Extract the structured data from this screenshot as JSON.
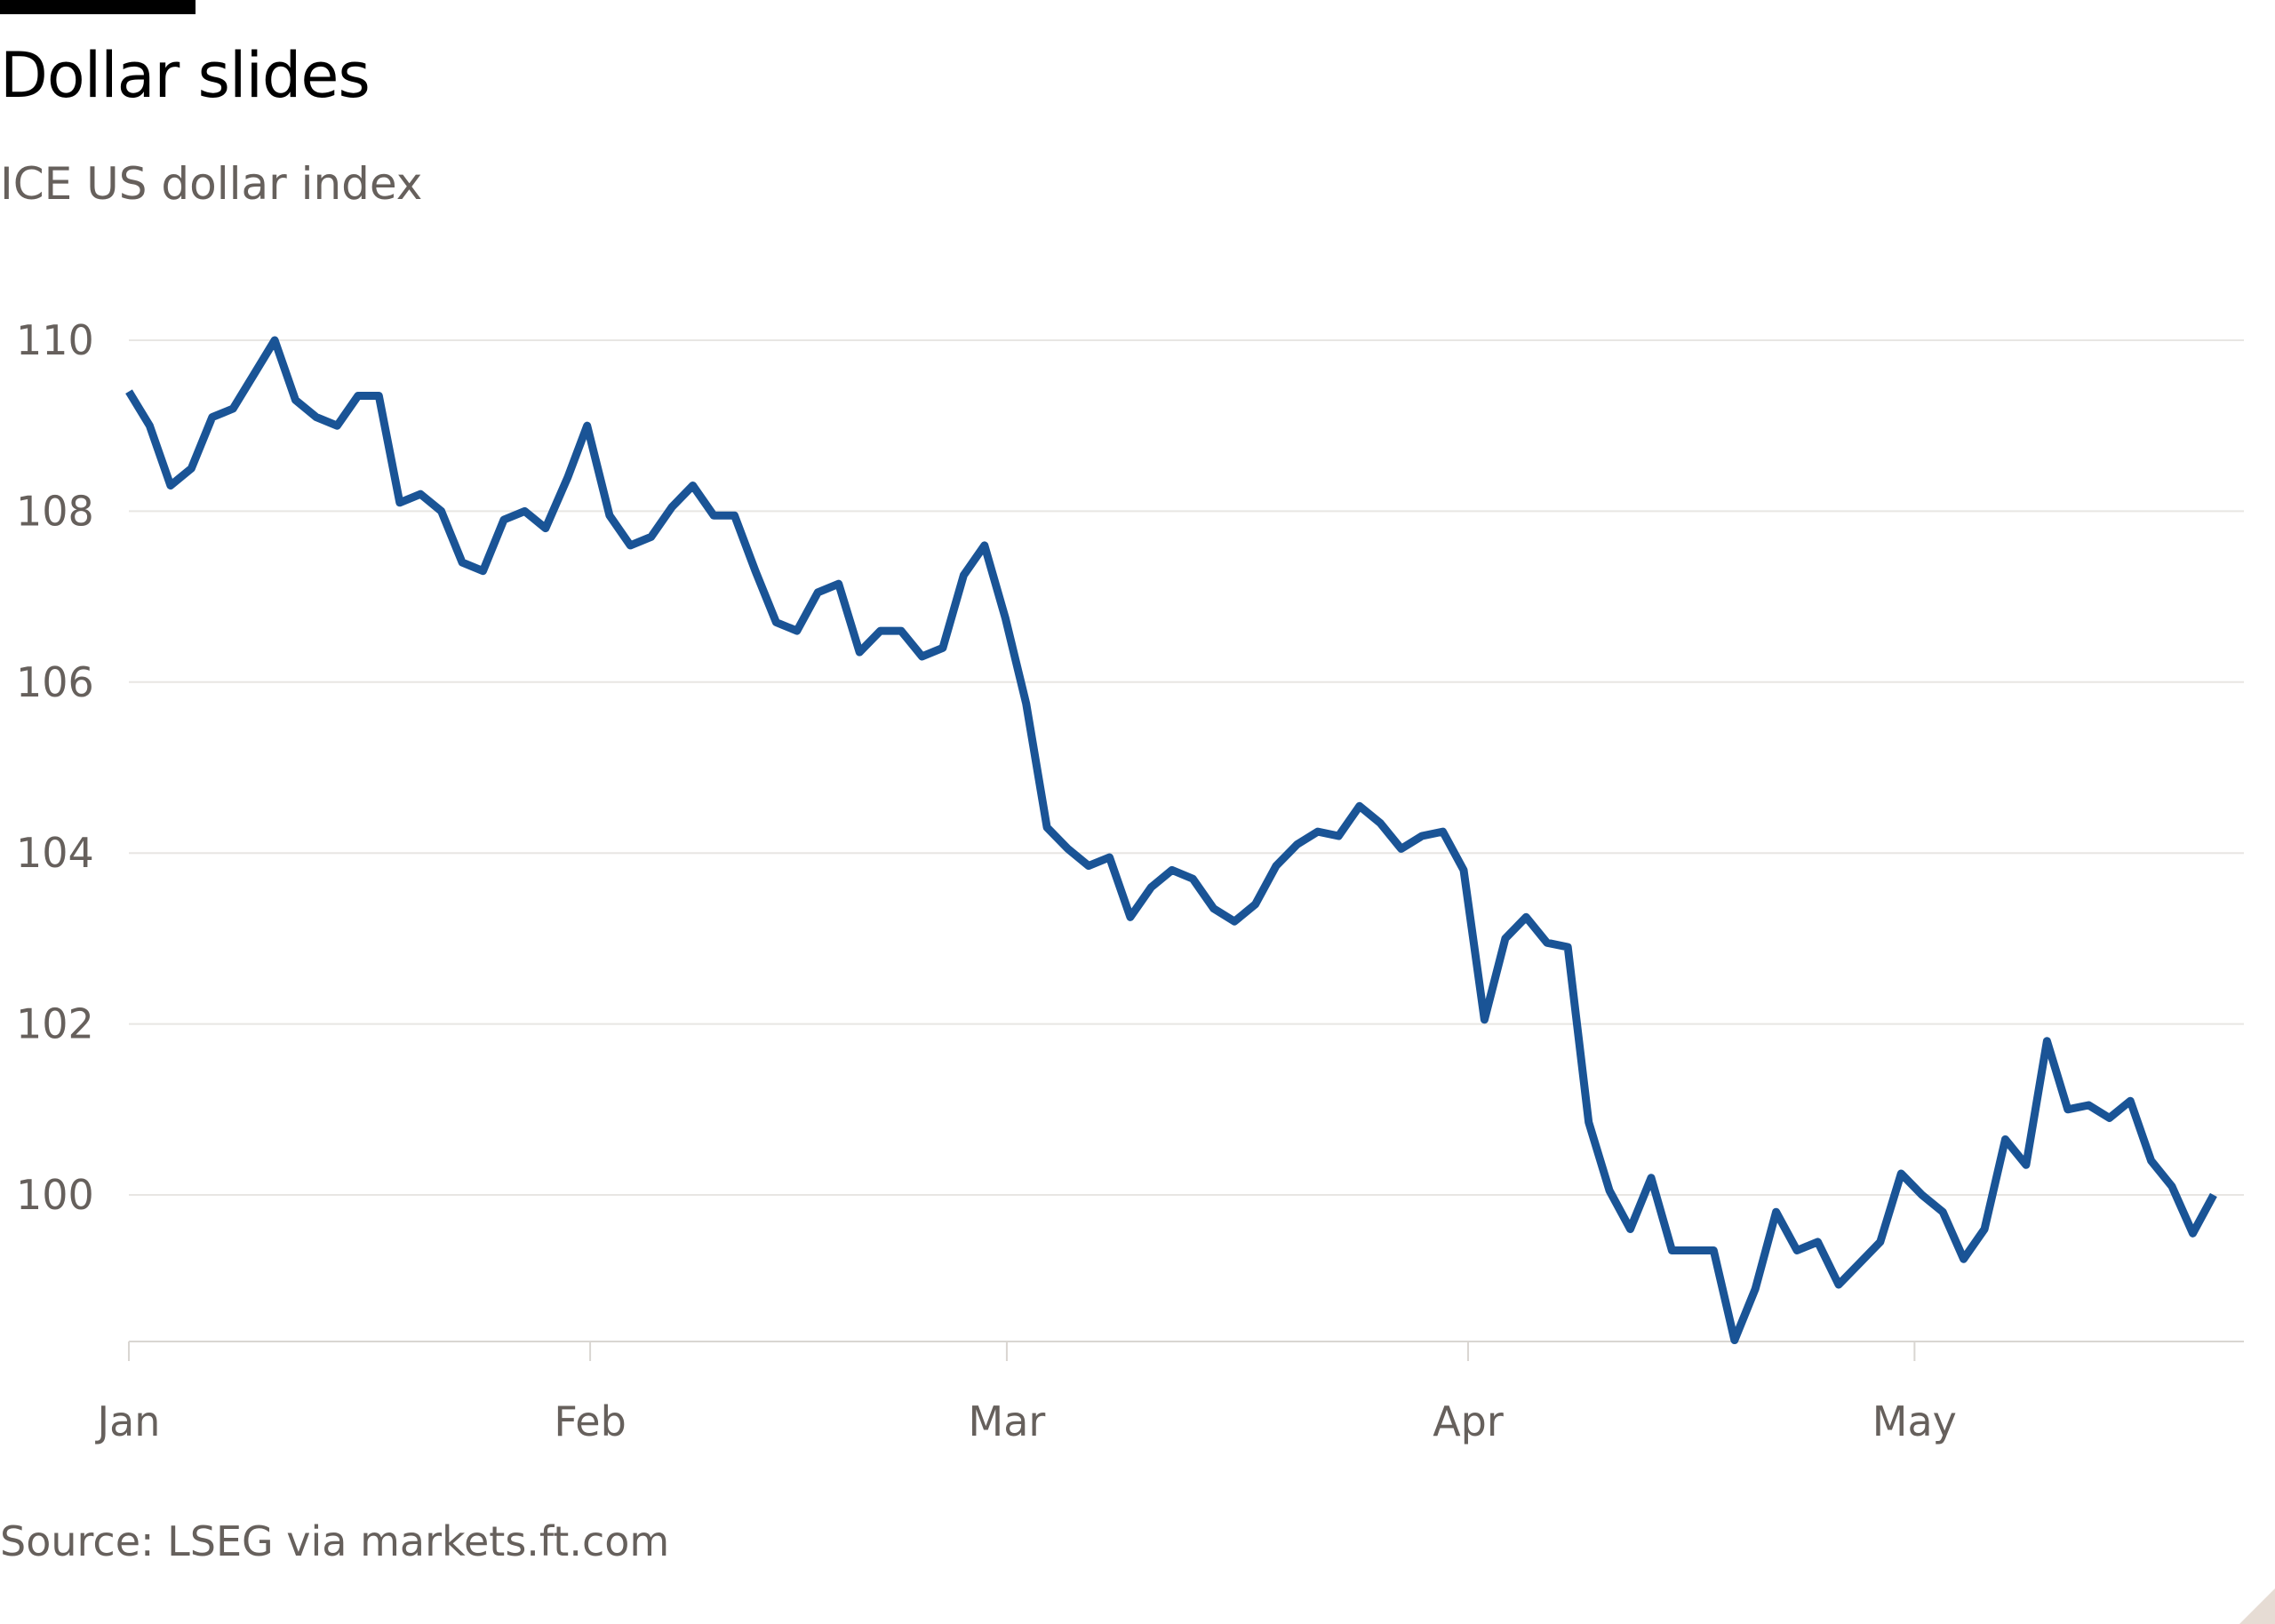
{
  "title": "Dollar slides",
  "subtitle": "ICE US dollar index",
  "source": "Source: LSEG via markets.ft.com",
  "colors": {
    "line": "#1a5496",
    "gridline": "#e8e6e3",
    "baseline": "#d9d6d2",
    "text": "#66605c",
    "title": "#000000"
  },
  "chart_data": {
    "type": "line",
    "title": "Dollar slides",
    "subtitle": "ICE US dollar index",
    "xlabel": "",
    "ylabel": "",
    "x_ticks": [
      {
        "day": 0,
        "label": "Jan"
      },
      {
        "day": 31,
        "label": "Feb"
      },
      {
        "day": 59,
        "label": "Mar"
      },
      {
        "day": 90,
        "label": "Apr"
      },
      {
        "day": 120,
        "label": "May"
      }
    ],
    "y_ticks": [
      100,
      102,
      104,
      106,
      108,
      110
    ],
    "ylim": [
      98.3,
      110
    ],
    "xlim": [
      0,
      141
    ],
    "grid": true,
    "series": [
      {
        "values": [
          [
            0,
            109.4
          ],
          [
            1.4,
            109.0
          ],
          [
            2.8,
            108.3
          ],
          [
            4.2,
            108.5
          ],
          [
            5.6,
            109.1
          ],
          [
            7.0,
            109.2
          ],
          [
            8.4,
            109.6
          ],
          [
            9.8,
            110.0
          ],
          [
            11.2,
            109.3
          ],
          [
            12.6,
            109.1
          ],
          [
            14.0,
            109.0
          ],
          [
            15.4,
            109.35
          ],
          [
            16.8,
            109.35
          ],
          [
            18.2,
            108.1
          ],
          [
            19.6,
            108.2
          ],
          [
            21.0,
            108.0
          ],
          [
            22.4,
            107.4
          ],
          [
            23.8,
            107.3
          ],
          [
            25.2,
            107.9
          ],
          [
            26.6,
            108.0
          ],
          [
            28.0,
            107.8
          ],
          [
            29.5,
            108.4
          ],
          [
            30.8,
            109.0
          ],
          [
            32.3,
            107.95
          ],
          [
            33.7,
            107.6
          ],
          [
            35.1,
            107.7
          ],
          [
            36.5,
            108.05
          ],
          [
            37.9,
            108.3
          ],
          [
            39.3,
            107.95
          ],
          [
            40.7,
            107.95
          ],
          [
            42.1,
            107.3
          ],
          [
            43.5,
            106.7
          ],
          [
            44.9,
            106.6
          ],
          [
            46.3,
            107.05
          ],
          [
            47.7,
            107.15
          ],
          [
            49.1,
            106.35
          ],
          [
            50.5,
            106.6
          ],
          [
            51.9,
            106.6
          ],
          [
            53.3,
            106.3
          ],
          [
            54.7,
            106.4
          ],
          [
            56.1,
            107.25
          ],
          [
            57.5,
            107.6
          ],
          [
            58.9,
            106.75
          ],
          [
            60.3,
            105.75
          ],
          [
            61.7,
            104.3
          ],
          [
            63.1,
            104.05
          ],
          [
            64.5,
            103.85
          ],
          [
            65.9,
            103.95
          ],
          [
            67.3,
            103.25
          ],
          [
            68.7,
            103.6
          ],
          [
            70.1,
            103.8
          ],
          [
            71.5,
            103.7
          ],
          [
            72.9,
            103.35
          ],
          [
            74.3,
            103.2
          ],
          [
            75.7,
            103.4
          ],
          [
            77.1,
            103.85
          ],
          [
            78.5,
            104.1
          ],
          [
            79.9,
            104.25
          ],
          [
            81.3,
            104.2
          ],
          [
            82.7,
            104.55
          ],
          [
            84.1,
            104.35
          ],
          [
            85.5,
            104.05
          ],
          [
            86.9,
            104.2
          ],
          [
            88.3,
            104.25
          ],
          [
            89.7,
            103.8
          ],
          [
            91.1,
            102.05
          ],
          [
            92.5,
            103.0
          ],
          [
            93.9,
            103.25
          ],
          [
            95.3,
            102.95
          ],
          [
            96.7,
            102.9
          ],
          [
            98.1,
            100.85
          ],
          [
            99.5,
            100.05
          ],
          [
            100.9,
            99.6
          ],
          [
            102.3,
            100.2
          ],
          [
            103.7,
            99.35
          ],
          [
            105.1,
            99.35
          ],
          [
            106.5,
            99.35
          ],
          [
            107.9,
            98.3
          ],
          [
            109.3,
            98.9
          ],
          [
            110.7,
            99.8
          ],
          [
            112.1,
            99.35
          ],
          [
            113.5,
            99.45
          ],
          [
            114.9,
            98.95
          ],
          [
            116.3,
            99.2
          ],
          [
            117.7,
            99.45
          ],
          [
            119.1,
            100.25
          ],
          [
            120.5,
            100.0
          ],
          [
            121.9,
            99.8
          ],
          [
            123.3,
            99.25
          ],
          [
            124.7,
            99.6
          ],
          [
            126.1,
            100.65
          ],
          [
            127.5,
            100.35
          ],
          [
            128.9,
            101.8
          ],
          [
            130.3,
            101.0
          ],
          [
            131.7,
            101.05
          ],
          [
            133.1,
            100.9
          ],
          [
            134.5,
            101.1
          ],
          [
            135.9,
            100.4
          ],
          [
            137.3,
            100.1
          ],
          [
            138.7,
            99.55
          ],
          [
            140.1,
            100.0
          ]
        ]
      }
    ]
  }
}
